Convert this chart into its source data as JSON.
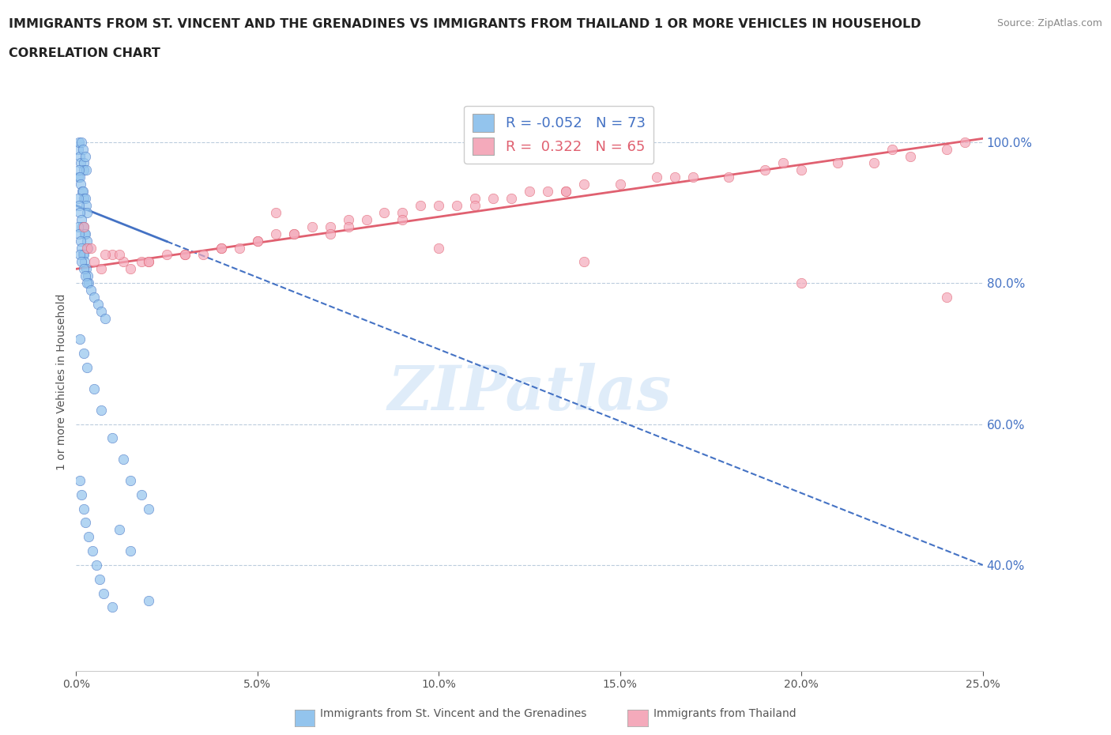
{
  "title_line1": "IMMIGRANTS FROM ST. VINCENT AND THE GRENADINES VS IMMIGRANTS FROM THAILAND 1 OR MORE VEHICLES IN HOUSEHOLD",
  "title_line2": "CORRELATION CHART",
  "source_text": "Source: ZipAtlas.com",
  "ylabel": "1 or more Vehicles in Household",
  "xlim": [
    0.0,
    25.0
  ],
  "ylim": [
    25.0,
    107.0
  ],
  "yticks": [
    40.0,
    60.0,
    80.0,
    100.0
  ],
  "xticks": [
    0.0,
    5.0,
    10.0,
    15.0,
    20.0,
    25.0
  ],
  "blue_R": -0.052,
  "blue_N": 73,
  "pink_R": 0.322,
  "pink_N": 65,
  "blue_color": "#93C4ED",
  "pink_color": "#F4AABB",
  "blue_line_color": "#4472C4",
  "pink_line_color": "#E06070",
  "legend_label_blue": "Immigrants from St. Vincent and the Grenadines",
  "legend_label_pink": "Immigrants from Thailand",
  "watermark": "ZIPatlas",
  "background_color": "#ffffff",
  "blue_scatter_x": [
    0.05,
    0.08,
    0.1,
    0.12,
    0.15,
    0.18,
    0.2,
    0.22,
    0.25,
    0.28,
    0.05,
    0.07,
    0.1,
    0.13,
    0.16,
    0.19,
    0.22,
    0.25,
    0.28,
    0.3,
    0.05,
    0.08,
    0.11,
    0.14,
    0.17,
    0.2,
    0.23,
    0.26,
    0.3,
    0.33,
    0.05,
    0.09,
    0.12,
    0.15,
    0.18,
    0.21,
    0.24,
    0.27,
    0.31,
    0.35,
    0.1,
    0.15,
    0.2,
    0.25,
    0.3,
    0.4,
    0.5,
    0.6,
    0.7,
    0.8,
    0.1,
    0.2,
    0.3,
    0.5,
    0.7,
    1.0,
    1.3,
    1.5,
    1.8,
    2.0,
    0.1,
    0.15,
    0.2,
    0.25,
    0.35,
    0.45,
    0.55,
    0.65,
    0.75,
    1.0,
    1.2,
    1.5,
    2.0
  ],
  "blue_scatter_y": [
    99,
    100,
    98,
    97,
    100,
    99,
    97,
    96,
    98,
    96,
    95,
    96,
    95,
    94,
    93,
    93,
    92,
    92,
    91,
    90,
    92,
    91,
    90,
    89,
    88,
    88,
    87,
    87,
    86,
    85,
    88,
    87,
    86,
    85,
    84,
    84,
    83,
    82,
    81,
    80,
    84,
    83,
    82,
    81,
    80,
    79,
    78,
    77,
    76,
    75,
    72,
    70,
    68,
    65,
    62,
    58,
    55,
    52,
    50,
    48,
    52,
    50,
    48,
    46,
    44,
    42,
    40,
    38,
    36,
    34,
    45,
    42,
    35
  ],
  "pink_scatter_x": [
    0.2,
    0.3,
    0.5,
    0.7,
    1.0,
    1.3,
    1.5,
    1.8,
    2.0,
    2.5,
    3.0,
    3.5,
    4.0,
    4.5,
    5.0,
    5.5,
    6.0,
    6.5,
    7.0,
    7.5,
    8.0,
    8.5,
    9.0,
    9.5,
    10.0,
    10.5,
    11.0,
    11.5,
    12.0,
    12.5,
    13.0,
    13.5,
    14.0,
    15.0,
    16.0,
    17.0,
    18.0,
    19.0,
    20.0,
    21.0,
    22.0,
    23.0,
    24.0,
    24.5,
    0.4,
    0.8,
    1.2,
    2.0,
    3.0,
    4.0,
    5.0,
    6.0,
    7.5,
    9.0,
    11.0,
    13.5,
    16.5,
    19.5,
    22.5,
    5.5,
    7.0,
    10.0,
    14.0,
    20.0,
    24.0
  ],
  "pink_scatter_y": [
    88,
    85,
    83,
    82,
    84,
    83,
    82,
    83,
    83,
    84,
    84,
    84,
    85,
    85,
    86,
    87,
    87,
    88,
    88,
    89,
    89,
    90,
    90,
    91,
    91,
    91,
    92,
    92,
    92,
    93,
    93,
    93,
    94,
    94,
    95,
    95,
    95,
    96,
    96,
    97,
    97,
    98,
    99,
    100,
    85,
    84,
    84,
    83,
    84,
    85,
    86,
    87,
    88,
    89,
    91,
    93,
    95,
    97,
    99,
    90,
    87,
    85,
    83,
    80,
    78
  ],
  "blue_trendline_x": [
    0.0,
    25.0
  ],
  "blue_trendline_y": [
    91.0,
    40.0
  ],
  "pink_trendline_x": [
    0.0,
    25.0
  ],
  "pink_trendline_y": [
    82.0,
    100.5
  ]
}
